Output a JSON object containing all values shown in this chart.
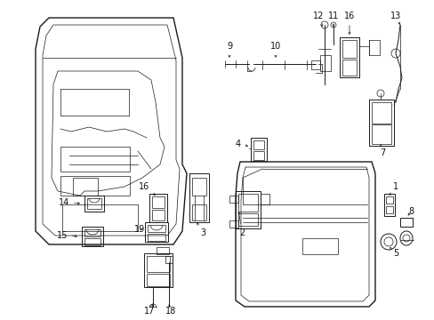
{
  "bg_color": "#ffffff",
  "fig_width": 4.89,
  "fig_height": 3.6,
  "dpi": 100,
  "line_color": "#1a1a1a",
  "label_color": "#111111",
  "label_fontsize": 7.0,
  "lw_door": 1.0,
  "lw_part": 0.7,
  "lw_thin": 0.5,
  "arrow_lw": 0.5,
  "arrow_ms": 4
}
